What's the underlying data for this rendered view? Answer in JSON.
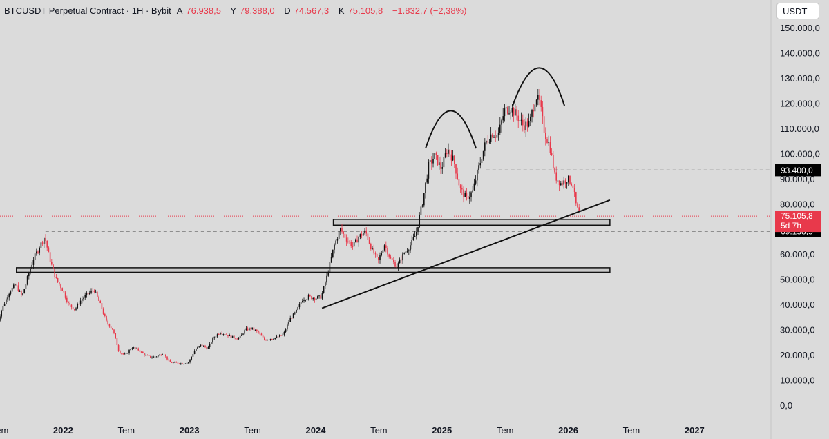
{
  "header": {
    "title": "BTCUSDT Perpetual Contract · 1H · Bybit",
    "open_label": "A",
    "open": "76.938,5",
    "high_label": "Y",
    "high": "79.388,0",
    "low_label": "D",
    "low": "74.567,3",
    "close_label": "K",
    "close": "75.105,8",
    "change": "−1.832,7 (−2,38%)"
  },
  "currency_button": "USDT",
  "colors": {
    "up": "#111111",
    "down": "#e8394b",
    "background": "#dbdbdb",
    "price_tag": "#e8394b",
    "level_tag": "#000000"
  },
  "chart_data": {
    "type": "candlestick",
    "symbol": "BTCUSDT",
    "timeframe": "1H",
    "y_axis": {
      "min": 0,
      "max": 150000,
      "ticks": [
        {
          "value": 150000,
          "label": "150.000,0"
        },
        {
          "value": 140000,
          "label": "140.000,0"
        },
        {
          "value": 130000,
          "label": "130.000,0"
        },
        {
          "value": 120000,
          "label": "120.000,0"
        },
        {
          "value": 110000,
          "label": "110.000,0"
        },
        {
          "value": 100000,
          "label": "100.000,0"
        },
        {
          "value": 90000,
          "label": "90.000,0"
        },
        {
          "value": 80000,
          "label": "80.000,0"
        },
        {
          "value": 60000,
          "label": "60.000,0"
        },
        {
          "value": 50000,
          "label": "50.000,0"
        },
        {
          "value": 40000,
          "label": "40.000,0"
        },
        {
          "value": 30000,
          "label": "30.000,0"
        },
        {
          "value": 20000,
          "label": "20.000,0"
        },
        {
          "value": 10000,
          "label": "10.000,0"
        },
        {
          "value": 0,
          "label": "0,0"
        }
      ]
    },
    "x_axis": {
      "start": 2021.5,
      "end": 2027.6,
      "ticks": [
        {
          "value": 2021.5,
          "label": "Tem",
          "bold": false
        },
        {
          "value": 2022.0,
          "label": "2022",
          "bold": true
        },
        {
          "value": 2022.5,
          "label": "Tem",
          "bold": false
        },
        {
          "value": 2023.0,
          "label": "2023",
          "bold": true
        },
        {
          "value": 2023.5,
          "label": "Tem",
          "bold": false
        },
        {
          "value": 2024.0,
          "label": "2024",
          "bold": true
        },
        {
          "value": 2024.5,
          "label": "Tem",
          "bold": false
        },
        {
          "value": 2025.0,
          "label": "2025",
          "bold": true
        },
        {
          "value": 2025.5,
          "label": "Tem",
          "bold": false
        },
        {
          "value": 2026.0,
          "label": "2026",
          "bold": true
        },
        {
          "value": 2026.5,
          "label": "Tem",
          "bold": false
        },
        {
          "value": 2027.0,
          "label": "2027",
          "bold": true
        }
      ]
    },
    "price_path": [
      [
        2021.47,
        30000
      ],
      [
        2021.52,
        38000
      ],
      [
        2021.58,
        45000
      ],
      [
        2021.63,
        48000
      ],
      [
        2021.68,
        43000
      ],
      [
        2021.72,
        50000
      ],
      [
        2021.77,
        58000
      ],
      [
        2021.83,
        64000
      ],
      [
        2021.86,
        67000
      ],
      [
        2021.9,
        58000
      ],
      [
        2021.95,
        50000
      ],
      [
        2022.0,
        46000
      ],
      [
        2022.05,
        40000
      ],
      [
        2022.1,
        38000
      ],
      [
        2022.15,
        42000
      ],
      [
        2022.2,
        44000
      ],
      [
        2022.25,
        46000
      ],
      [
        2022.3,
        40000
      ],
      [
        2022.35,
        33000
      ],
      [
        2022.4,
        30000
      ],
      [
        2022.45,
        21000
      ],
      [
        2022.5,
        20000
      ],
      [
        2022.55,
        23000
      ],
      [
        2022.6,
        22000
      ],
      [
        2022.65,
        20000
      ],
      [
        2022.7,
        19000
      ],
      [
        2022.75,
        19500
      ],
      [
        2022.8,
        20500
      ],
      [
        2022.85,
        17000
      ],
      [
        2022.9,
        16800
      ],
      [
        2022.95,
        16500
      ],
      [
        2023.0,
        17000
      ],
      [
        2023.05,
        22000
      ],
      [
        2023.1,
        24000
      ],
      [
        2023.15,
        22500
      ],
      [
        2023.2,
        27000
      ],
      [
        2023.25,
        29000
      ],
      [
        2023.3,
        28000
      ],
      [
        2023.35,
        27000
      ],
      [
        2023.4,
        26500
      ],
      [
        2023.45,
        30000
      ],
      [
        2023.5,
        30500
      ],
      [
        2023.55,
        29000
      ],
      [
        2023.6,
        26000
      ],
      [
        2023.65,
        26500
      ],
      [
        2023.7,
        27000
      ],
      [
        2023.75,
        28000
      ],
      [
        2023.8,
        34000
      ],
      [
        2023.85,
        37000
      ],
      [
        2023.9,
        42000
      ],
      [
        2023.95,
        43000
      ],
      [
        2024.0,
        42500
      ],
      [
        2024.05,
        43000
      ],
      [
        2024.1,
        52000
      ],
      [
        2024.15,
        63000
      ],
      [
        2024.2,
        70000
      ],
      [
        2024.25,
        66000
      ],
      [
        2024.3,
        63000
      ],
      [
        2024.35,
        67000
      ],
      [
        2024.4,
        69000
      ],
      [
        2024.45,
        62000
      ],
      [
        2024.5,
        57000
      ],
      [
        2024.55,
        64000
      ],
      [
        2024.6,
        58000
      ],
      [
        2024.65,
        55000
      ],
      [
        2024.7,
        60000
      ],
      [
        2024.75,
        63000
      ],
      [
        2024.8,
        68000
      ],
      [
        2024.85,
        80000
      ],
      [
        2024.9,
        95000
      ],
      [
        2024.95,
        99000
      ],
      [
        2025.0,
        94000
      ],
      [
        2025.05,
        102000
      ],
      [
        2025.1,
        97000
      ],
      [
        2025.15,
        86000
      ],
      [
        2025.2,
        82000
      ],
      [
        2025.25,
        85000
      ],
      [
        2025.3,
        95000
      ],
      [
        2025.35,
        104000
      ],
      [
        2025.4,
        108000
      ],
      [
        2025.45,
        107000
      ],
      [
        2025.5,
        117000
      ],
      [
        2025.55,
        118000
      ],
      [
        2025.6,
        115000
      ],
      [
        2025.65,
        111000
      ],
      [
        2025.7,
        112000
      ],
      [
        2025.75,
        123000
      ],
      [
        2025.78,
        120000
      ],
      [
        2025.82,
        108000
      ],
      [
        2025.86,
        103000
      ],
      [
        2025.9,
        91000
      ],
      [
        2025.95,
        88000
      ],
      [
        2026.0,
        90000
      ],
      [
        2026.04,
        88000
      ],
      [
        2026.07,
        79000
      ],
      [
        2026.1,
        75105.8
      ]
    ],
    "current_price": {
      "value": 75105.8,
      "label": "75.105,8",
      "countdown": "5d 7h"
    },
    "horizontal_levels": [
      {
        "name": "resistance-93400",
        "value": 93400,
        "label": "93.400,0",
        "style": "dashed",
        "from": 2025.35
      },
      {
        "name": "level-69138",
        "value": 69138.5,
        "label": "69.138,5",
        "style": "dashed",
        "from": 2021.86
      }
    ],
    "zones": [
      {
        "name": "upper-support-zone",
        "from_x": 2024.14,
        "to_x": 2026.33,
        "low": 71500,
        "high": 73800
      },
      {
        "name": "lower-support-zone",
        "from_x": 2021.63,
        "to_x": 2026.33,
        "low": 52800,
        "high": 54600
      }
    ],
    "trendline": {
      "from": [
        2024.05,
        38500
      ],
      "to": [
        2026.33,
        81500
      ]
    },
    "arcs": [
      {
        "name": "left-shoulder-arc",
        "from": [
          2024.87,
          102000
        ],
        "peak": [
          2025.07,
          117000
        ],
        "to": [
          2025.27,
          102000
        ]
      },
      {
        "name": "head-arc",
        "from": [
          2025.56,
          119000
        ],
        "peak": [
          2025.77,
          134000
        ],
        "to": [
          2025.97,
          119000
        ]
      }
    ]
  }
}
